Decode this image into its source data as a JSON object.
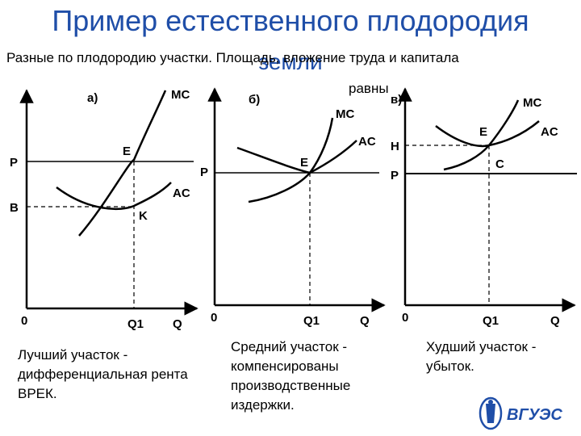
{
  "slide": {
    "title": "Пример естественного плодородия",
    "title_line2": "земли",
    "intro": "Разные по плодородию участки. Площадь, вложение труда и капитала",
    "intro_tail": "равны"
  },
  "graphs": [
    {
      "panel": "а)",
      "curves": [
        "MC",
        "AC"
      ],
      "price_labels": [
        "P",
        "B"
      ],
      "points": [
        "E",
        "K"
      ],
      "origin": "0",
      "q_label": "Q1",
      "axis_label": "Q"
    },
    {
      "panel": "б)",
      "curves": [
        "MC",
        "AC"
      ],
      "price_labels": [
        "P"
      ],
      "points": [
        "E"
      ],
      "origin": "0",
      "q_label": "Q1",
      "axis_label": "Q"
    },
    {
      "panel": "в)",
      "curves": [
        "MC",
        "AC"
      ],
      "price_labels": [
        "H",
        "P"
      ],
      "points": [
        "E",
        "C"
      ],
      "origin": "0",
      "q_label": "Q1",
      "axis_label": "Q"
    }
  ],
  "captions": [
    "Лучший участок - дифференциальная рента ВРЕК.",
    "Средний участок - компенсированы производственные издержки.",
    "Худший участок - убыток."
  ],
  "logo_text": "ВГУЭС"
}
